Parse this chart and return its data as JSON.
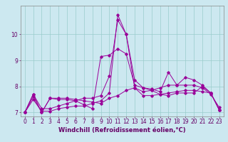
{
  "xlabel": "Windchill (Refroidissement éolien,°C)",
  "background_color": "#cce8f0",
  "line_color": "#990099",
  "x_values": [
    0,
    1,
    2,
    3,
    4,
    5,
    6,
    7,
    8,
    9,
    10,
    11,
    12,
    13,
    14,
    15,
    16,
    17,
    18,
    19,
    20,
    21,
    22,
    23
  ],
  "series": [
    [
      7.0,
      7.7,
      7.0,
      7.55,
      7.55,
      7.55,
      7.5,
      7.45,
      7.4,
      7.35,
      7.55,
      7.65,
      7.85,
      7.95,
      7.8,
      7.85,
      7.95,
      8.05,
      8.05,
      8.05,
      8.05,
      7.95,
      7.7,
      7.2
    ],
    [
      7.0,
      7.7,
      7.15,
      7.15,
      7.25,
      7.35,
      7.45,
      7.55,
      7.55,
      7.65,
      8.4,
      10.55,
      10.0,
      8.25,
      7.95,
      7.9,
      7.8,
      8.55,
      8.05,
      8.35,
      8.25,
      8.05,
      7.75,
      7.1
    ],
    [
      7.0,
      7.5,
      7.05,
      7.05,
      7.15,
      7.2,
      7.25,
      7.25,
      7.35,
      7.45,
      7.75,
      10.75,
      10.0,
      7.95,
      7.65,
      7.65,
      7.7,
      7.75,
      7.8,
      7.85,
      7.85,
      7.8,
      7.75,
      7.1
    ],
    [
      7.0,
      7.6,
      7.0,
      7.55,
      7.5,
      7.5,
      7.45,
      7.3,
      7.15,
      9.15,
      9.2,
      9.45,
      9.25,
      8.05,
      7.95,
      7.85,
      7.7,
      7.65,
      7.75,
      7.75,
      7.75,
      8.0,
      7.75,
      7.1
    ]
  ],
  "ylim": [
    6.85,
    11.1
  ],
  "xlim": [
    -0.5,
    23.5
  ],
  "yticks": [
    7,
    8,
    9,
    10
  ],
  "xticks": [
    0,
    1,
    2,
    3,
    4,
    5,
    6,
    7,
    8,
    9,
    10,
    11,
    12,
    13,
    14,
    15,
    16,
    17,
    18,
    19,
    20,
    21,
    22,
    23
  ],
  "grid_color": "#99cccc",
  "tick_fontsize": 5.5,
  "xlabel_fontsize": 6.0,
  "marker": "D",
  "marker_size": 1.8,
  "linewidth": 0.7
}
